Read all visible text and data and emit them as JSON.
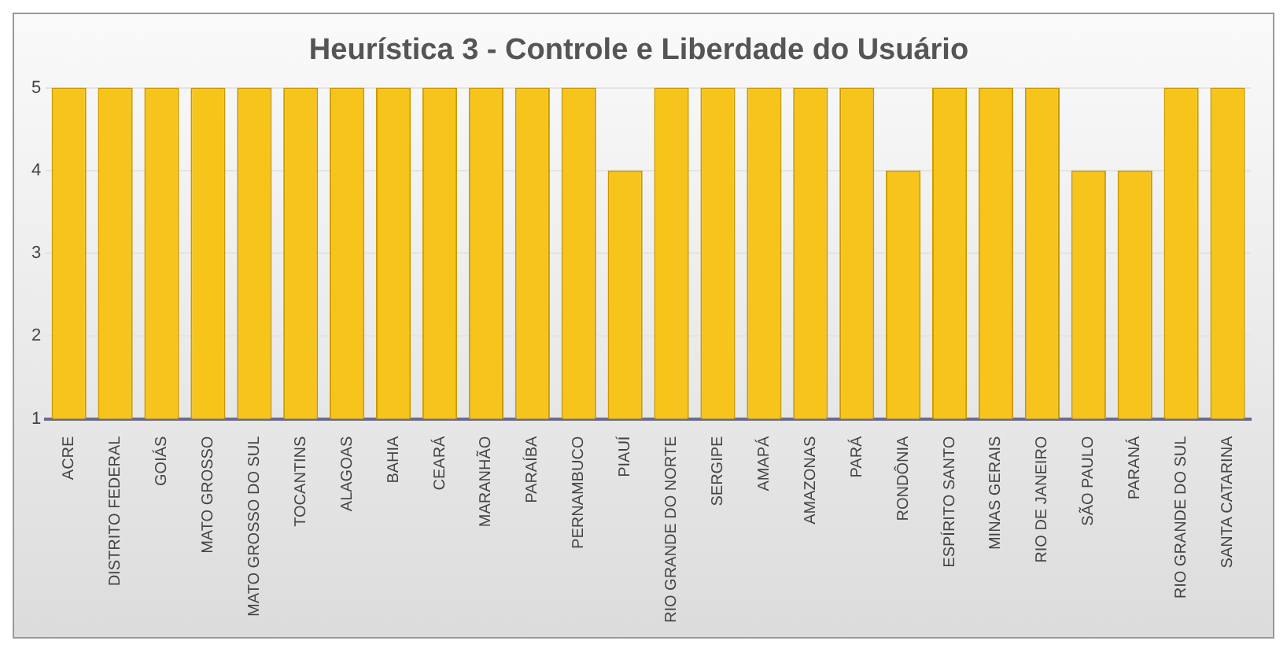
{
  "chart_data": {
    "type": "bar",
    "title": "Heurística 3 - Controle e Liberdade do Usuário",
    "categories": [
      "ACRE",
      "DISTRITO FEDERAL",
      "GOIÁS",
      "MATO GROSSO",
      "MATO GROSSO DO SUL",
      "TOCANTINS",
      "ALAGOAS",
      "BAHIA",
      "CEARÁ",
      "MARANHÃO",
      "PARAÍBA",
      "PERNAMBUCO",
      "PIAUÍ",
      "RIO GRANDE DO NORTE",
      "SERGIPE",
      "AMAPÁ",
      "AMAZONAS",
      "PARÁ",
      "RONDÔNIA",
      "ESPÍRITO SANTO",
      "MINAS GERAIS",
      "RIO DE JANEIRO",
      "SÃO PAULO",
      "PARANÁ",
      "RIO GRANDE DO SUL",
      "SANTA CATARINA"
    ],
    "values": [
      5,
      5,
      5,
      5,
      5,
      5,
      5,
      5,
      5,
      5,
      5,
      5,
      4,
      5,
      5,
      5,
      5,
      5,
      4,
      5,
      5,
      5,
      4,
      4,
      5,
      5
    ],
    "color": "#f7c41b",
    "ylim": [
      1,
      5
    ],
    "yticks": [
      1,
      2,
      3,
      4,
      5
    ],
    "grid": "y",
    "legend": false
  }
}
